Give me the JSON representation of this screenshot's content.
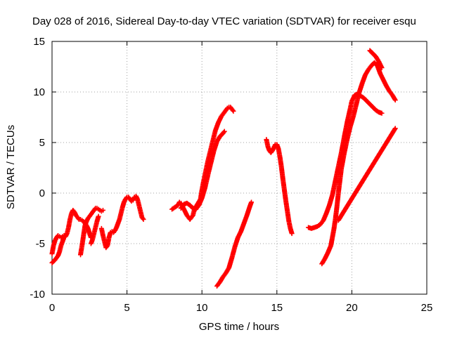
{
  "chart_data": {
    "type": "scatter",
    "title": "Day 028 of 2016, Sidereal Day-to-day VTEC variation (SDTVAR) for receiver esqu",
    "xlabel": "GPS time / hours",
    "ylabel": "SDTVAR / TECUs",
    "xlim": [
      0,
      25
    ],
    "ylim": [
      -10,
      15
    ],
    "xticks": [
      0,
      5,
      10,
      15,
      20,
      25
    ],
    "yticks": [
      -10,
      -5,
      0,
      5,
      10,
      15
    ],
    "grid": true,
    "marker": "+",
    "color": "#ff0000",
    "segments": [
      {
        "name": "arc-1",
        "points": [
          [
            0.0,
            -6.9
          ],
          [
            0.2,
            -6.6
          ],
          [
            0.4,
            -6.2
          ],
          [
            0.5,
            -5.8
          ],
          [
            0.6,
            -5.2
          ],
          [
            0.7,
            -4.8
          ],
          [
            0.8,
            -4.4
          ],
          [
            0.9,
            -4.3
          ],
          [
            1.0,
            -4.0
          ],
          [
            1.1,
            -3.4
          ],
          [
            1.2,
            -2.6
          ],
          [
            1.3,
            -2.0
          ],
          [
            1.4,
            -1.7
          ],
          [
            1.5,
            -1.9
          ],
          [
            1.6,
            -2.2
          ],
          [
            1.7,
            -2.4
          ],
          [
            1.8,
            -2.6
          ],
          [
            1.9,
            -2.6
          ],
          [
            2.0,
            -2.7
          ],
          [
            2.1,
            -2.8
          ],
          [
            2.2,
            -3.0
          ],
          [
            2.3,
            -3.2
          ],
          [
            2.4,
            -3.5
          ],
          [
            2.5,
            -4.0
          ],
          [
            2.6,
            -4.4
          ]
        ]
      },
      {
        "name": "arc-2",
        "points": [
          [
            0.0,
            -6.0
          ],
          [
            0.1,
            -5.2
          ],
          [
            0.2,
            -4.7
          ],
          [
            0.3,
            -4.4
          ],
          [
            0.4,
            -4.2
          ],
          [
            0.5,
            -4.3
          ],
          [
            0.6,
            -4.4
          ],
          [
            0.7,
            -4.3
          ],
          [
            0.8,
            -4.2
          ]
        ]
      },
      {
        "name": "arc-3",
        "points": [
          [
            1.9,
            -6.1
          ],
          [
            2.0,
            -5.2
          ],
          [
            2.1,
            -4.2
          ],
          [
            2.2,
            -3.2
          ],
          [
            2.3,
            -2.8
          ],
          [
            2.4,
            -2.5
          ],
          [
            2.5,
            -2.3
          ],
          [
            2.6,
            -2.1
          ],
          [
            2.7,
            -1.9
          ],
          [
            2.8,
            -1.7
          ],
          [
            2.9,
            -1.5
          ],
          [
            3.0,
            -1.5
          ],
          [
            3.1,
            -1.6
          ],
          [
            3.2,
            -1.7
          ],
          [
            3.3,
            -1.8
          ],
          [
            3.4,
            -1.7
          ]
        ]
      },
      {
        "name": "arc-4",
        "points": [
          [
            2.6,
            -5.0
          ],
          [
            2.7,
            -4.6
          ],
          [
            2.8,
            -4.0
          ],
          [
            2.9,
            -3.4
          ],
          [
            3.0,
            -2.8
          ],
          [
            3.1,
            -2.3
          ]
        ]
      },
      {
        "name": "arc-5",
        "points": [
          [
            3.3,
            -3.5
          ],
          [
            3.4,
            -4.2
          ],
          [
            3.5,
            -4.8
          ],
          [
            3.6,
            -5.4
          ],
          [
            3.7,
            -5.2
          ],
          [
            3.8,
            -4.4
          ],
          [
            3.9,
            -3.9
          ],
          [
            4.0,
            -3.8
          ],
          [
            4.1,
            -3.9
          ],
          [
            4.2,
            -3.7
          ],
          [
            4.3,
            -3.4
          ],
          [
            4.4,
            -3.0
          ],
          [
            4.5,
            -2.6
          ],
          [
            4.6,
            -2.0
          ],
          [
            4.7,
            -1.4
          ],
          [
            4.8,
            -0.9
          ],
          [
            4.9,
            -0.6
          ],
          [
            5.0,
            -0.4
          ],
          [
            5.1,
            -0.4
          ],
          [
            5.2,
            -0.6
          ],
          [
            5.3,
            -0.8
          ],
          [
            5.4,
            -0.7
          ],
          [
            5.5,
            -0.4
          ],
          [
            5.6,
            -0.3
          ],
          [
            5.7,
            -0.6
          ],
          [
            5.8,
            -1.2
          ],
          [
            5.9,
            -1.8
          ],
          [
            6.0,
            -2.4
          ],
          [
            6.1,
            -2.6
          ]
        ]
      },
      {
        "name": "arc-6",
        "points": [
          [
            8.0,
            -1.6
          ],
          [
            8.2,
            -1.4
          ],
          [
            8.4,
            -1.2
          ],
          [
            8.5,
            -0.9
          ],
          [
            8.6,
            -1.0
          ],
          [
            8.8,
            -1.6
          ],
          [
            9.0,
            -2.2
          ],
          [
            9.2,
            -2.6
          ],
          [
            9.3,
            -2.4
          ],
          [
            9.4,
            -2.2
          ],
          [
            9.5,
            -1.6
          ],
          [
            9.7,
            -1.1
          ],
          [
            9.9,
            -0.6
          ],
          [
            10.0,
            0.3
          ],
          [
            10.1,
            1.1
          ],
          [
            10.2,
            1.8
          ],
          [
            10.3,
            2.5
          ],
          [
            10.4,
            3.2
          ],
          [
            10.5,
            3.8
          ],
          [
            10.6,
            4.4
          ],
          [
            10.7,
            5.0
          ],
          [
            10.8,
            5.6
          ],
          [
            10.9,
            6.2
          ],
          [
            11.0,
            6.6
          ],
          [
            11.1,
            7.0
          ],
          [
            11.2,
            7.3
          ],
          [
            11.3,
            7.6
          ],
          [
            11.4,
            7.8
          ],
          [
            11.5,
            8.0
          ],
          [
            11.6,
            8.2
          ],
          [
            11.7,
            8.4
          ],
          [
            11.8,
            8.5
          ],
          [
            11.9,
            8.5
          ],
          [
            12.0,
            8.3
          ],
          [
            12.1,
            8.1
          ]
        ]
      },
      {
        "name": "arc-7",
        "points": [
          [
            8.6,
            -1.5
          ],
          [
            8.8,
            -1.1
          ],
          [
            9.0,
            -1.0
          ],
          [
            9.2,
            -1.2
          ],
          [
            9.4,
            -1.5
          ],
          [
            9.6,
            -1.6
          ],
          [
            9.8,
            -1.2
          ],
          [
            10.0,
            -0.5
          ],
          [
            10.2,
            0.5
          ],
          [
            10.4,
            1.8
          ],
          [
            10.6,
            3.0
          ],
          [
            10.8,
            4.2
          ],
          [
            11.0,
            5.1
          ],
          [
            11.2,
            5.6
          ],
          [
            11.4,
            5.9
          ],
          [
            11.5,
            6.1
          ]
        ]
      },
      {
        "name": "arc-8",
        "points": [
          [
            11.0,
            -9.2
          ],
          [
            11.2,
            -8.8
          ],
          [
            11.4,
            -8.3
          ],
          [
            11.6,
            -7.9
          ],
          [
            11.8,
            -7.4
          ],
          [
            12.0,
            -6.4
          ],
          [
            12.2,
            -5.3
          ],
          [
            12.4,
            -4.4
          ],
          [
            12.6,
            -3.8
          ],
          [
            12.8,
            -3.0
          ],
          [
            13.0,
            -2.2
          ],
          [
            13.2,
            -1.3
          ],
          [
            13.3,
            -0.9
          ]
        ]
      },
      {
        "name": "arc-9",
        "points": [
          [
            14.3,
            5.3
          ],
          [
            14.4,
            4.6
          ],
          [
            14.5,
            4.2
          ],
          [
            14.6,
            4.0
          ],
          [
            14.7,
            4.2
          ],
          [
            14.8,
            4.5
          ],
          [
            14.9,
            4.8
          ],
          [
            15.0,
            4.8
          ],
          [
            15.1,
            4.4
          ],
          [
            15.2,
            3.6
          ],
          [
            15.3,
            2.6
          ],
          [
            15.4,
            1.4
          ],
          [
            15.5,
            0.3
          ],
          [
            15.6,
            -0.8
          ],
          [
            15.7,
            -1.8
          ],
          [
            15.8,
            -2.8
          ],
          [
            15.9,
            -3.5
          ],
          [
            16.0,
            -4.0
          ]
        ]
      },
      {
        "name": "arc-10",
        "points": [
          [
            17.1,
            -3.4
          ],
          [
            17.3,
            -3.5
          ],
          [
            17.5,
            -3.4
          ],
          [
            17.7,
            -3.3
          ],
          [
            17.9,
            -3.1
          ],
          [
            18.1,
            -2.7
          ],
          [
            18.3,
            -2.0
          ],
          [
            18.5,
            -1.2
          ],
          [
            18.7,
            -0.2
          ],
          [
            18.9,
            1.2
          ],
          [
            19.1,
            2.6
          ],
          [
            19.3,
            4.0
          ],
          [
            19.5,
            5.6
          ],
          [
            19.7,
            7.1
          ],
          [
            19.9,
            8.4
          ],
          [
            20.0,
            9.1
          ],
          [
            20.2,
            9.7
          ],
          [
            20.4,
            9.8
          ],
          [
            20.6,
            9.6
          ],
          [
            20.8,
            9.4
          ],
          [
            21.0,
            9.1
          ],
          [
            21.2,
            8.8
          ],
          [
            21.4,
            8.5
          ],
          [
            21.6,
            8.2
          ],
          [
            21.8,
            8.0
          ],
          [
            22.0,
            7.9
          ]
        ]
      },
      {
        "name": "arc-11",
        "points": [
          [
            18.0,
            -7.0
          ],
          [
            18.2,
            -6.5
          ],
          [
            18.4,
            -5.9
          ],
          [
            18.6,
            -5.2
          ],
          [
            18.8,
            -3.6
          ],
          [
            18.9,
            -2.6
          ],
          [
            19.0,
            -1.4
          ],
          [
            19.1,
            0.0
          ],
          [
            19.2,
            1.2
          ],
          [
            19.3,
            2.4
          ],
          [
            19.5,
            4.0
          ],
          [
            19.7,
            5.4
          ],
          [
            19.9,
            6.6
          ],
          [
            20.1,
            7.6
          ],
          [
            20.3,
            8.8
          ],
          [
            20.5,
            10.0
          ],
          [
            20.7,
            10.9
          ],
          [
            20.9,
            11.7
          ],
          [
            21.1,
            12.2
          ],
          [
            21.3,
            12.6
          ],
          [
            21.5,
            12.9
          ],
          [
            21.7,
            12.6
          ],
          [
            21.9,
            11.8
          ],
          [
            22.1,
            11.2
          ],
          [
            22.3,
            10.6
          ],
          [
            22.5,
            10.1
          ],
          [
            22.7,
            9.7
          ],
          [
            22.9,
            9.2
          ]
        ]
      },
      {
        "name": "arc-12",
        "points": [
          [
            21.2,
            14.1
          ],
          [
            21.4,
            13.8
          ],
          [
            21.6,
            13.5
          ],
          [
            21.8,
            13.0
          ],
          [
            22.0,
            12.4
          ]
        ]
      },
      {
        "name": "outliers",
        "points": [
          [
            19.1,
            -2.7
          ],
          [
            22.9,
            6.4
          ]
        ]
      }
    ]
  }
}
